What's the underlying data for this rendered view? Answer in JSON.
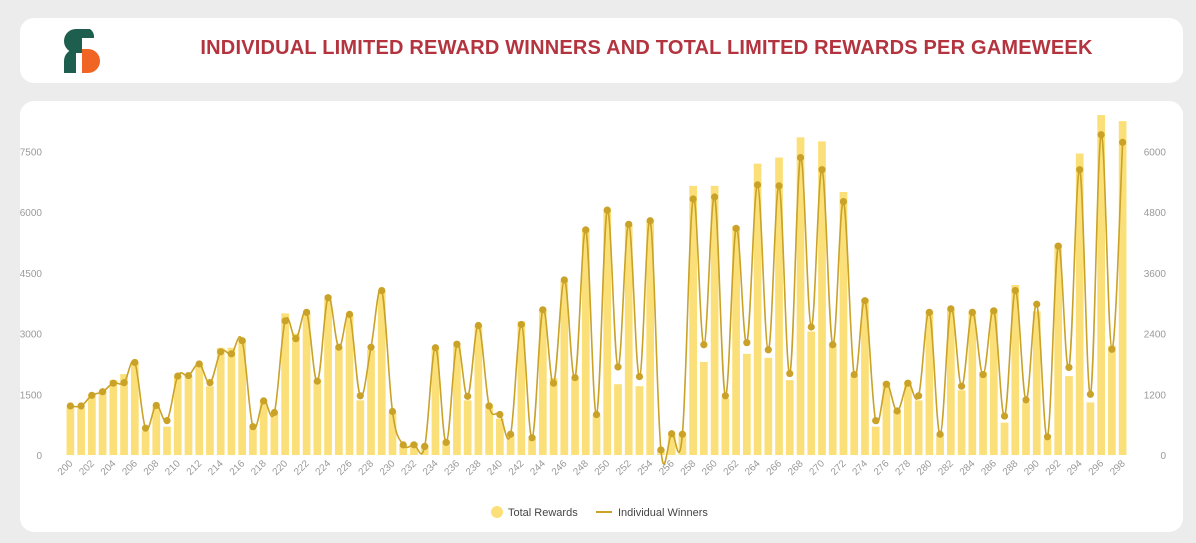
{
  "header": {
    "title": "INDIVIDUAL LIMITED REWARD WINNERS AND TOTAL LIMITED REWARDS PER GAMEWEEK",
    "logo_icon": "brand-logo-icon",
    "colors": {
      "logo_green": "#1e5e4e",
      "logo_orange": "#f06424",
      "title": "#b3343f"
    }
  },
  "chart_data": {
    "type": "bar",
    "title": "INDIVIDUAL LIMITED REWARD WINNERS AND TOTAL LIMITED REWARDS PER GAMEWEEK",
    "categories": [
      200,
      201,
      202,
      203,
      204,
      205,
      206,
      207,
      208,
      209,
      210,
      211,
      212,
      213,
      214,
      215,
      216,
      217,
      218,
      219,
      220,
      221,
      222,
      223,
      224,
      225,
      226,
      227,
      228,
      229,
      230,
      231,
      232,
      233,
      234,
      235,
      236,
      237,
      238,
      239,
      240,
      241,
      242,
      243,
      244,
      245,
      246,
      247,
      248,
      249,
      250,
      251,
      252,
      253,
      254,
      255,
      256,
      257,
      258,
      259,
      260,
      261,
      262,
      263,
      264,
      265,
      266,
      267,
      268,
      269,
      270,
      271,
      272,
      273,
      274,
      275,
      276,
      277,
      278,
      279,
      280,
      281,
      282,
      283,
      284,
      285,
      286,
      287,
      288,
      289,
      290,
      291,
      292,
      293,
      294,
      295,
      296,
      297,
      298
    ],
    "x_tick_labels": [
      "200",
      "202",
      "204",
      "206",
      "208",
      "210",
      "212",
      "214",
      "216",
      "218",
      "220",
      "222",
      "224",
      "226",
      "228",
      "230",
      "232",
      "234",
      "236",
      "238",
      "240",
      "242",
      "244",
      "246",
      "248",
      "250",
      "252",
      "254",
      "256",
      "258",
      "260",
      "262",
      "264",
      "266",
      "268",
      "270",
      "272",
      "274",
      "276",
      "278",
      "280",
      "282",
      "284",
      "286",
      "288",
      "290",
      "292",
      "294",
      "296",
      "298"
    ],
    "series": [
      {
        "name": "Total Rewards",
        "kind": "bar",
        "axis": "left",
        "color": "#fbe07a",
        "values": [
          1200,
          1150,
          1500,
          1600,
          1850,
          2000,
          2300,
          600,
          1200,
          700,
          1950,
          1950,
          2250,
          1700,
          2650,
          2650,
          2850,
          650,
          1350,
          1050,
          3500,
          3000,
          3500,
          1850,
          3850,
          2650,
          3450,
          1350,
          2600,
          4050,
          1050,
          250,
          300,
          250,
          2650,
          350,
          2700,
          1350,
          3200,
          1250,
          900,
          500,
          3300,
          400,
          3600,
          1900,
          4300,
          1900,
          5600,
          1000,
          6050,
          1750,
          5700,
          1700,
          5800,
          150,
          500,
          550,
          6650,
          2300,
          6650,
          1400,
          5650,
          2500,
          7200,
          2400,
          7350,
          1850,
          7850,
          3050,
          7750,
          2750,
          6500,
          1950,
          3850,
          700,
          1800,
          1100,
          1800,
          1350,
          3550,
          500,
          3600,
          1600,
          3550,
          2050,
          3600,
          800,
          4200,
          1300,
          3550,
          400,
          5200,
          1950,
          7450,
          1300,
          8400,
          2700,
          8250
        ]
      },
      {
        "name": "Individual Winners",
        "kind": "line",
        "axis": "right",
        "color": "#c9a227",
        "values": [
          970,
          970,
          1180,
          1250,
          1420,
          1430,
          1830,
          530,
          980,
          680,
          1560,
          1570,
          1800,
          1430,
          2040,
          2000,
          2260,
          560,
          1070,
          840,
          2650,
          2300,
          2820,
          1460,
          3110,
          2130,
          2780,
          1170,
          2130,
          3250,
          860,
          200,
          200,
          170,
          2120,
          250,
          2190,
          1160,
          2560,
          970,
          800,
          410,
          2580,
          340,
          2870,
          1420,
          3460,
          1530,
          4450,
          800,
          4840,
          1740,
          4560,
          1550,
          4630,
          100,
          420,
          410,
          5060,
          2180,
          5100,
          1170,
          4480,
          2220,
          5340,
          2080,
          5320,
          1610,
          5880,
          2530,
          5640,
          2180,
          5010,
          1590,
          3050,
          680,
          1400,
          870,
          1420,
          1170,
          2820,
          410,
          2890,
          1360,
          2820,
          1590,
          2850,
          770,
          3250,
          1090,
          2980,
          360,
          4130,
          1730,
          5640,
          1200,
          6330,
          2090,
          6180
        ]
      }
    ],
    "y_left": {
      "ticks": [
        0,
        1500,
        3000,
        4500,
        6000,
        7500
      ],
      "ylim": [
        0,
        8500
      ]
    },
    "y_right": {
      "ticks": [
        0,
        1200,
        2400,
        3600,
        4800,
        6000
      ],
      "ylim": [
        0,
        6800
      ]
    },
    "legend": {
      "position": "bottom-center",
      "items": [
        "Total Rewards",
        "Individual Winners"
      ]
    },
    "grid": false
  }
}
